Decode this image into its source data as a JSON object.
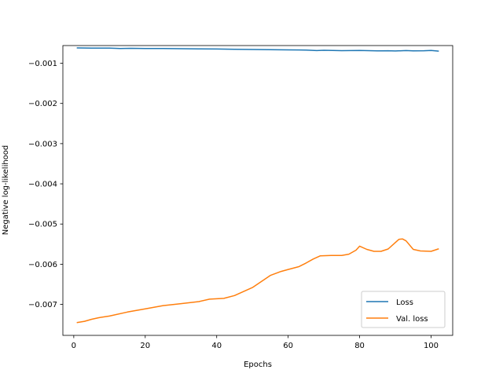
{
  "chart_data": {
    "type": "line",
    "title": "",
    "xlabel": "Epochs",
    "ylabel": "Negative log-likelihood",
    "xlim": [
      -3.05,
      106.05
    ],
    "ylim": [
      -0.00777,
      -0.00056
    ],
    "xticks": [
      0,
      20,
      40,
      60,
      80,
      100
    ],
    "xtick_labels": [
      "0",
      "20",
      "40",
      "60",
      "80",
      "100"
    ],
    "yticks": [
      -0.007,
      -0.006,
      -0.005,
      -0.004,
      -0.003,
      -0.002,
      -0.001
    ],
    "ytick_labels": [
      "−0.007",
      "−0.006",
      "−0.005",
      "−0.004",
      "−0.003",
      "−0.002",
      "−0.001"
    ],
    "grid": false,
    "legend_position": "bottom-right",
    "series": [
      {
        "name": "Loss",
        "color": "#1f77b4",
        "x": [
          1,
          5,
          10,
          13,
          16,
          20,
          25,
          30,
          35,
          40,
          45,
          50,
          55,
          60,
          65,
          68,
          70,
          75,
          80,
          85,
          88,
          90,
          93,
          95,
          98,
          100,
          102
        ],
        "y": [
          -0.000618,
          -0.000625,
          -0.000622,
          -0.000632,
          -0.000628,
          -0.000633,
          -0.000635,
          -0.000638,
          -0.000642,
          -0.000645,
          -0.000652,
          -0.000658,
          -0.000663,
          -0.000668,
          -0.000672,
          -0.000685,
          -0.000678,
          -0.000687,
          -0.000682,
          -0.000692,
          -0.000688,
          -0.000695,
          -0.000685,
          -0.000692,
          -0.000688,
          -0.000682,
          -0.000698
        ]
      },
      {
        "name": "Val. loss",
        "color": "#ff7f0e",
        "x": [
          1,
          3,
          5,
          7,
          10,
          15,
          20,
          25,
          30,
          35,
          38,
          42,
          45,
          50,
          55,
          58,
          60,
          63,
          65,
          67,
          69,
          72,
          75,
          77,
          79,
          80,
          82,
          84,
          86,
          88,
          90,
          91,
          92,
          93,
          95,
          97,
          100,
          102
        ],
        "y": [
          -0.00745,
          -0.00742,
          -0.00737,
          -0.00733,
          -0.00729,
          -0.00719,
          -0.00711,
          -0.00703,
          -0.00698,
          -0.00693,
          -0.00687,
          -0.00685,
          -0.00678,
          -0.00658,
          -0.00628,
          -0.00618,
          -0.00613,
          -0.00606,
          -0.00597,
          -0.00587,
          -0.00579,
          -0.00578,
          -0.00578,
          -0.00575,
          -0.00565,
          -0.00555,
          -0.00563,
          -0.00568,
          -0.00568,
          -0.00562,
          -0.00546,
          -0.00538,
          -0.00537,
          -0.00542,
          -0.00563,
          -0.00567,
          -0.00568,
          -0.00562
        ]
      }
    ]
  }
}
